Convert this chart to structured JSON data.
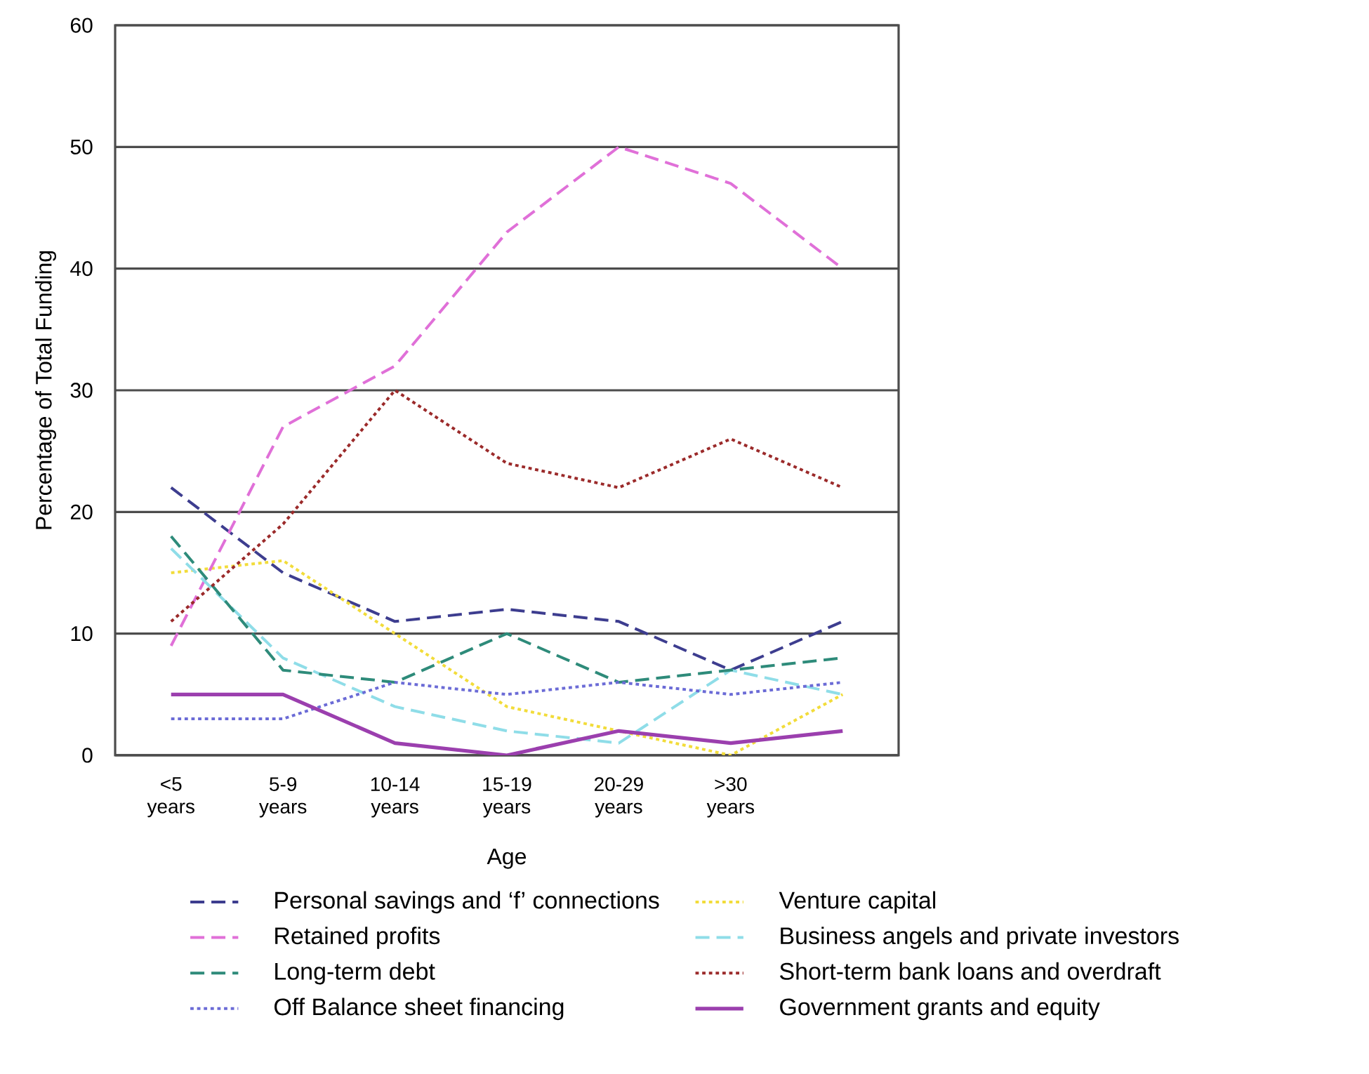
{
  "chart_data": {
    "type": "line",
    "xlabel": "Age",
    "ylabel": "Percentage of Total Funding",
    "categories": [
      "<5 years",
      "5-9 years",
      "10-14 years",
      "15-19 years",
      "20-29 years",
      ">30 years",
      null
    ],
    "ylim": [
      0,
      60
    ],
    "yticks": [
      0,
      10,
      20,
      30,
      40,
      50,
      60
    ],
    "grid": "y",
    "legend": "bottom",
    "marker": "none",
    "series": [
      {
        "name": "Personal savings and ‘f’ connections",
        "color": "#3d3d8f",
        "line_style": "dashed",
        "values": [
          22,
          15,
          11,
          12,
          11,
          7,
          11
        ]
      },
      {
        "name": "Retained profits",
        "color": "#e070d8",
        "line_style": "dashed",
        "values": [
          9,
          27,
          32,
          43,
          50,
          47,
          40
        ]
      },
      {
        "name": "Long-term debt",
        "color": "#2e8b7a",
        "line_style": "dashed",
        "values": [
          18,
          7,
          6,
          10,
          6,
          7,
          8
        ]
      },
      {
        "name": "Off Balance sheet financing",
        "color": "#6b6bd6",
        "line_style": "dotted",
        "values": [
          3,
          3,
          6,
          5,
          6,
          5,
          6
        ]
      },
      {
        "name": "Venture capital",
        "color": "#f2dc3a",
        "line_style": "dotted",
        "values": [
          15,
          16,
          10,
          4,
          2,
          0,
          5
        ]
      },
      {
        "name": "Business angels and private investors",
        "color": "#8fdde8",
        "line_style": "dashed",
        "values": [
          17,
          8,
          4,
          2,
          1,
          7,
          5
        ]
      },
      {
        "name": "Short-term bank loans and overdraft",
        "color": "#9b2a2a",
        "line_style": "dotted",
        "values": [
          11,
          19,
          30,
          24,
          22,
          26,
          22
        ]
      },
      {
        "name": "Government grants and equity",
        "color": "#9b3fae",
        "line_style": "solid",
        "values": [
          5,
          5,
          1,
          0,
          2,
          1,
          2
        ]
      }
    ]
  }
}
